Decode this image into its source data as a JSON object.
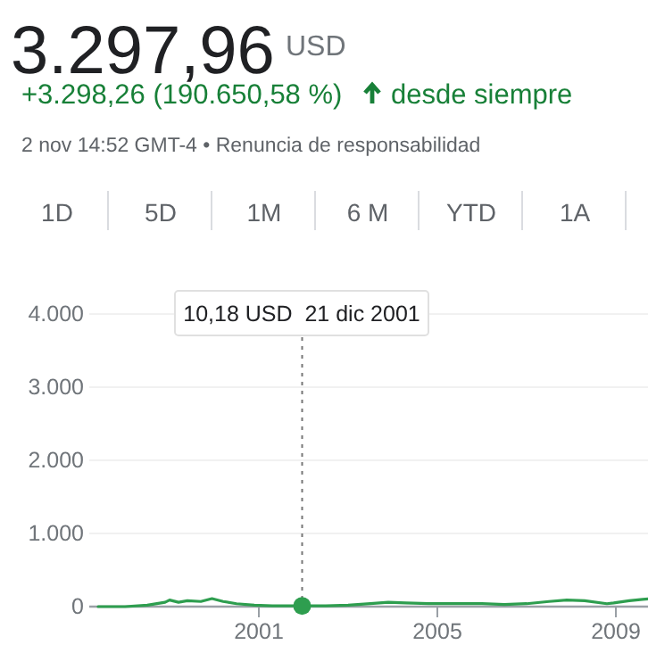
{
  "chart_data": {
    "type": "line",
    "title": "3.297,96",
    "annotations": [
      "USD",
      "+3.298,26 (190.650,58 %)",
      "desde siempre",
      "2 nov 14:52 GMT-4 • Renuncia de responsabilidad",
      "1D",
      "5D",
      "1M",
      "6 M",
      "YTD",
      "1A",
      "10,18 USD  21 dic 2001"
    ],
    "series": [
      {
        "color": "#2e9e4f",
        "x": [
          1997.4,
          1998.0,
          1998.5,
          1998.9,
          1999.0,
          1999.2,
          1999.4,
          1999.7,
          1999.95,
          2000.2,
          2000.5,
          2000.9,
          2001.3,
          2001.7,
          2001.97,
          2002.5,
          2003.0,
          2003.5,
          2003.9,
          2004.3,
          2004.8,
          2005.5,
          2006.0,
          2006.5,
          2007.0,
          2007.5,
          2007.9,
          2008.3,
          2008.8,
          2008.95,
          2009.3,
          2009.6,
          2009.8
        ],
        "values": [
          0,
          0,
          20,
          60,
          90,
          60,
          80,
          70,
          110,
          70,
          40,
          20,
          10,
          10,
          10,
          10,
          20,
          40,
          60,
          50,
          40,
          40,
          40,
          30,
          40,
          70,
          90,
          80,
          40,
          50,
          80,
          100,
          110
        ]
      },
      {
        "type": "scatter",
        "color": "#2e9e4f",
        "marker": "circle",
        "x": [
          2001.97
        ],
        "values": [
          10
        ]
      }
    ],
    "marker": "none",
    "line_style": "solid",
    "xlim": [
      1997.2,
      2009.8
    ],
    "xticks": [
      2001,
      2005,
      2009
    ],
    "ylim": [
      0,
      4000
    ],
    "yticks": [
      0,
      {
        "value": 1000,
        "label": "1.000"
      },
      {
        "value": 2000,
        "label": "2.000"
      },
      {
        "value": 3000,
        "label": "3.000"
      },
      {
        "value": 4000,
        "label": "4.000"
      }
    ],
    "grid": "y",
    "ref_lines": [
      {
        "axis": "x",
        "value": 2001.97,
        "line_style": "dotted",
        "color": "#777777"
      }
    ]
  }
}
